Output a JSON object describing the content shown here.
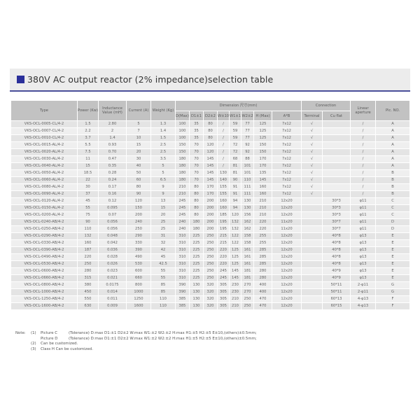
{
  "title": "380V AC output reactor (2% impedance)selection table",
  "colors": {
    "accent": "#2a2f9a",
    "rule": "#4a4f9a",
    "header_bg": "#c2c2c2"
  },
  "table": {
    "headers": {
      "type": "Type",
      "power": "Power (Kw)",
      "inductance": "Inductance Value (mH)",
      "current": "Current (A)",
      "weight": "Weight (Kg)",
      "dimension": "Dimension 尺寸(mm)",
      "connection": "Connection",
      "linear": "Linear aperture",
      "pic": "Pic. NO.",
      "dim_cols": [
        "D(Max)",
        "D1±1",
        "D2±2",
        "W±10",
        "W1±1",
        "W2±2",
        "H (Max)",
        "A*B"
      ],
      "conn_cols": [
        "Terminal",
        "Cu flat"
      ]
    },
    "rows": [
      [
        "VKS-OCL-0005-CL/4-2",
        "1.5",
        "2.80",
        "5",
        "1.3",
        "100",
        "35",
        "80",
        "/",
        "59",
        "77",
        "125",
        "7x12",
        "√",
        "",
        "/",
        "A"
      ],
      [
        "VKS-OCL-0007-CL/4-2",
        "2.2",
        "2",
        "7",
        "1.4",
        "100",
        "35",
        "80",
        "/",
        "59",
        "77",
        "125",
        "7x12",
        "√",
        "",
        "/",
        "A"
      ],
      [
        "VKS-OCL-0010-CL/4-2",
        "3.7",
        "1.4",
        "10",
        "1.5",
        "100",
        "35",
        "80",
        "/",
        "59",
        "77",
        "125",
        "7x12",
        "√",
        "",
        "/",
        "A"
      ],
      [
        "VKS-OCL-0015-AL/4-2",
        "5.5",
        "0.93",
        "15",
        "2.5",
        "150",
        "70",
        "120",
        "/",
        "72",
        "92",
        "150",
        "7x12",
        "√",
        "",
        "/",
        "A"
      ],
      [
        "VKS-OCL-0020-AL/4-2",
        "7.5",
        "0.70",
        "20",
        "2.5",
        "150",
        "70",
        "120",
        "/",
        "72",
        "92",
        "150",
        "7x12",
        "√",
        "",
        "/",
        "A"
      ],
      [
        "VKS-OCL-0030-AL/4-2",
        "11",
        "0.47",
        "30",
        "3.5",
        "180",
        "70",
        "145",
        "/",
        "68",
        "88",
        "170",
        "7x12",
        "√",
        "",
        "/",
        "A"
      ],
      [
        "VKS-OCL-0040-AL/4-2",
        "15",
        "0.35",
        "40",
        "5",
        "180",
        "70",
        "145",
        "/",
        "81",
        "101",
        "170",
        "7x12",
        "√",
        "",
        "/",
        "A"
      ],
      [
        "VKS-OCL-0050-AL/4-2",
        "18.5",
        "0.28",
        "50",
        "5",
        "180",
        "70",
        "145",
        "130",
        "81",
        "101",
        "135",
        "7x12",
        "√",
        "",
        "/",
        "B"
      ],
      [
        "VKS-OCL-0060-AL/4-2",
        "22",
        "0.24",
        "60",
        "6.5",
        "180",
        "70",
        "145",
        "140",
        "90",
        "110",
        "145",
        "7x12",
        "√",
        "",
        "/",
        "B"
      ],
      [
        "VKS-OCL-0080-AL/4-2",
        "30",
        "0.17",
        "80",
        "9",
        "210",
        "80",
        "170",
        "155",
        "91",
        "111",
        "160",
        "7x12",
        "√",
        "",
        "/",
        "B"
      ],
      [
        "VKS-OCL-0090-AL/4-2",
        "37",
        "0.16",
        "90",
        "9",
        "210",
        "80",
        "170",
        "155",
        "91",
        "111",
        "160",
        "7x12",
        "√",
        "",
        "/",
        "B"
      ],
      [
        "VKS-OCL-0120-AL/4-2",
        "45",
        "0.12",
        "120",
        "13",
        "245",
        "80",
        "200",
        "160",
        "94",
        "130",
        "210",
        "12x20",
        "",
        "30*3",
        "φ11",
        "C"
      ],
      [
        "VKS-OCL-0150-AL/4-2",
        "55",
        "0.095",
        "150",
        "15",
        "245",
        "80",
        "200",
        "160",
        "94",
        "130",
        "210",
        "12x20",
        "",
        "30*3",
        "φ11",
        "C"
      ],
      [
        "VKS-OCL-0200-AL/4-2",
        "75",
        "0.07",
        "200",
        "20",
        "245",
        "80",
        "200",
        "185",
        "120",
        "156",
        "210",
        "12x20",
        "",
        "30*3",
        "φ11",
        "C"
      ],
      [
        "VKS-OCL-0240-AB/4-2",
        "90",
        "0.056",
        "240",
        "25",
        "240",
        "180",
        "200",
        "195",
        "132",
        "162",
        "220",
        "11x20",
        "",
        "30*7",
        "φ11",
        "D"
      ],
      [
        "VKS-OCL-0250-AB/4-2",
        "110",
        "0.056",
        "250",
        "25",
        "240",
        "180",
        "200",
        "195",
        "132",
        "162",
        "220",
        "11x20",
        "",
        "30*7",
        "φ11",
        "D"
      ],
      [
        "VKS-OCL-0290-AB/4-2",
        "132",
        "0.048",
        "290",
        "31",
        "310",
        "225",
        "250",
        "215",
        "122",
        "158",
        "255",
        "12x20",
        "",
        "40*8",
        "φ13",
        "E"
      ],
      [
        "VKS-OCL-0330-AB/4-2",
        "160",
        "0.042",
        "330",
        "32",
        "310",
        "225",
        "250",
        "215",
        "122",
        "158",
        "255",
        "12x20",
        "",
        "40*8",
        "φ13",
        "E"
      ],
      [
        "VKS-OCL-0390-AB/4-2",
        "187",
        "0.036",
        "390",
        "42",
        "310",
        "225",
        "250",
        "220",
        "125",
        "161",
        "285",
        "12x20",
        "",
        "40*8",
        "φ13",
        "E"
      ],
      [
        "VKS-OCL-0490-AB/4-2",
        "220",
        "0.028",
        "490",
        "45",
        "310",
        "225",
        "250",
        "220",
        "125",
        "161",
        "285",
        "12x20",
        "",
        "40*8",
        "φ13",
        "E"
      ],
      [
        "VKS-OCL-0530-AB/4-2",
        "250",
        "0.026",
        "530",
        "42.5",
        "310",
        "225",
        "250",
        "220",
        "125",
        "161",
        "285",
        "12x20",
        "",
        "40*8",
        "φ13",
        "E"
      ],
      [
        "VKS-OCL-0600-AB/4-2",
        "280",
        "0.023",
        "600",
        "55",
        "310",
        "225",
        "250",
        "245",
        "145",
        "181",
        "280",
        "12x20",
        "",
        "40*9",
        "φ13",
        "E"
      ],
      [
        "VKS-OCL-0660-AB/4-2",
        "315",
        "0.021",
        "660",
        "55",
        "310",
        "225",
        "250",
        "245",
        "145",
        "181",
        "280",
        "12x20",
        "",
        "40*9",
        "φ13",
        "E"
      ],
      [
        "VKS-OCL-0800-AB/4-2",
        "380",
        "0.0175",
        "800",
        "85",
        "390",
        "130",
        "320",
        "305",
        "230",
        "270",
        "400",
        "12x20",
        "",
        "50*11",
        "2-φ11",
        "G"
      ],
      [
        "VKS-OCL-1000-AB/4-2",
        "450",
        "0.014",
        "1000",
        "85",
        "390",
        "130",
        "320",
        "305",
        "230",
        "270",
        "400",
        "12x20",
        "",
        "50*11",
        "2-φ11",
        "G"
      ],
      [
        "VKS-OCL-1250-AB/4-2",
        "550",
        "0.011",
        "1250",
        "110",
        "385",
        "130",
        "320",
        "305",
        "210",
        "250",
        "470",
        "12x20",
        "",
        "60*13",
        "4-φ13",
        "F"
      ],
      [
        "VKS-OCL-1600-AB/4-2",
        "630",
        "0.009",
        "1600",
        "110",
        "385",
        "130",
        "320",
        "305",
        "210",
        "250",
        "470",
        "12x20",
        "",
        "60*15",
        "4-φ13",
        "F"
      ]
    ]
  },
  "notes": {
    "label": "Note:",
    "items": [
      {
        "num": "(1)",
        "pic": "Picture C",
        "text": "(Tolerance) D:max D1:±1 D2±2 W:max W1:±2 W2:±2 H:max H1:±5 H2:±5 E±10,(others)±0.5mm;"
      },
      {
        "num": "",
        "pic": "Picture D",
        "text": "(Tolerance) D:max D1:±1 D2±2 W:max W1:±2 W2:±2 H:max H1:±5 H2:±5 E±10,(others)±0.5mm;"
      },
      {
        "num": "(2)",
        "pic": "",
        "text": "Can be customized."
      },
      {
        "num": "(3)",
        "pic": "",
        "text": "Class H Can be customized."
      }
    ]
  }
}
